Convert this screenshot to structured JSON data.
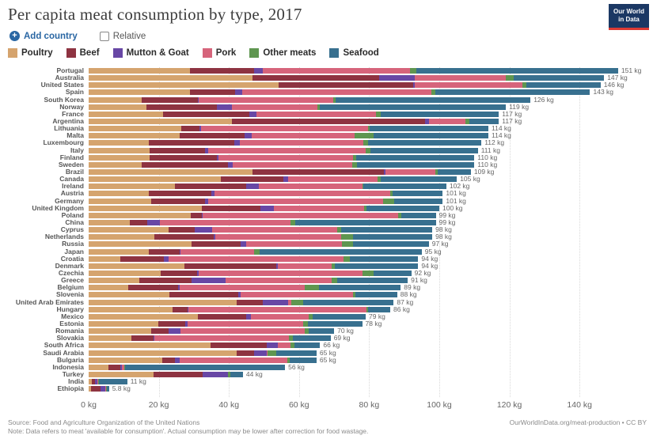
{
  "header": {
    "title": "Per capita meat consumption by type, 2017",
    "logo": {
      "line1": "Our World",
      "line2": "in Data"
    }
  },
  "controls": {
    "add_country_label": "Add country",
    "plus_icon": "+",
    "relative_label": "Relative",
    "relative_checked": false
  },
  "theme": {
    "accent_blue": "#2966a3",
    "logo_navy": "#1b3864",
    "logo_red": "#dc3a34",
    "grid_color": "#d8d8d8"
  },
  "categories": [
    {
      "label": "Poultry",
      "color": "#d5a46e"
    },
    {
      "label": "Beef",
      "color": "#8e3341"
    },
    {
      "label": "Mutton & Goat",
      "color": "#6847a5"
    },
    {
      "label": "Pork",
      "color": "#d6647b"
    },
    {
      "label": "Other meats",
      "color": "#5f9650"
    },
    {
      "label": "Seafood",
      "color": "#38708f"
    }
  ],
  "chart_data": {
    "type": "bar",
    "stacked": true,
    "orientation": "horizontal",
    "unit": "kg",
    "title": "Per capita meat consumption by type, 2017",
    "xlabel": "",
    "ylabel": "",
    "xlim": [
      0,
      151
    ],
    "grid": "dotted-vertical",
    "categories": [
      "Poultry",
      "Beef",
      "Mutton & Goat",
      "Pork",
      "Other meats",
      "Seafood"
    ],
    "x_ticks": [
      {
        "kg": 0,
        "label": "0 kg"
      },
      {
        "kg": 20,
        "label": "20 kg"
      },
      {
        "kg": 40,
        "label": "40 kg"
      },
      {
        "kg": 60,
        "label": "60 kg"
      },
      {
        "kg": 80,
        "label": "80 kg"
      },
      {
        "kg": 100,
        "label": "100 kg"
      },
      {
        "kg": 120,
        "label": "120 kg"
      },
      {
        "kg": 140,
        "label": "140 kg"
      }
    ],
    "rows": [
      {
        "country": "Portugal",
        "total_label": "151 kg",
        "values": [
          28.9,
          18.3,
          2.5,
          42.0,
          1.8,
          57.5
        ]
      },
      {
        "country": "Australia",
        "total_label": "147 kg",
        "values": [
          46.7,
          36.2,
          10.1,
          25.9,
          2.4,
          25.7
        ]
      },
      {
        "country": "United States",
        "total_label": "146 kg",
        "values": [
          54.2,
          38.3,
          0.5,
          30.8,
          1.0,
          21.2
        ]
      },
      {
        "country": "Spain",
        "total_label": "143 kg",
        "values": [
          29.0,
          12.8,
          1.9,
          54.0,
          1.2,
          44.1
        ]
      },
      {
        "country": "South Korea",
        "total_label": "126 kg",
        "values": [
          15.1,
          16.0,
          0.3,
          38.4,
          0.7,
          55.5
        ]
      },
      {
        "country": "Norway",
        "total_label": "119 kg",
        "values": [
          16.5,
          20.0,
          4.3,
          24.5,
          0.7,
          53.0
        ]
      },
      {
        "country": "France",
        "total_label": "117 kg",
        "values": [
          21.3,
          24.5,
          2.0,
          34.1,
          1.3,
          33.8
        ]
      },
      {
        "country": "Argentina",
        "total_label": "117 kg",
        "values": [
          40.9,
          55.0,
          1.2,
          10.4,
          1.1,
          8.4
        ]
      },
      {
        "country": "Lithuania",
        "total_label": "114 kg",
        "values": [
          26.4,
          5.2,
          0.4,
          47.7,
          0.5,
          33.8
        ]
      },
      {
        "country": "Malta",
        "total_label": "114 kg",
        "values": [
          26.0,
          18.5,
          2.0,
          29.3,
          5.4,
          32.8
        ]
      },
      {
        "country": "Luxembourg",
        "total_label": "112 kg",
        "values": [
          17.2,
          24.3,
          1.6,
          35.2,
          1.4,
          32.3
        ]
      },
      {
        "country": "Italy",
        "total_label": "111 kg",
        "values": [
          17.4,
          15.8,
          0.9,
          44.9,
          1.4,
          30.6
        ]
      },
      {
        "country": "Finland",
        "total_label": "110 kg",
        "values": [
          17.3,
          19.3,
          0.5,
          38.4,
          0.9,
          33.6
        ]
      },
      {
        "country": "Sweden",
        "total_label": "110 kg",
        "values": [
          15.1,
          24.6,
          1.4,
          34.1,
          1.3,
          33.5
        ]
      },
      {
        "country": "Brazil",
        "total_label": "109 kg",
        "values": [
          46.7,
          37.5,
          0.4,
          14.3,
          0.6,
          9.5
        ]
      },
      {
        "country": "Canada",
        "total_label": "105 kg",
        "values": [
          37.7,
          17.8,
          1.4,
          25.5,
          0.9,
          21.7
        ]
      },
      {
        "country": "Ireland",
        "total_label": "102 kg",
        "values": [
          24.6,
          20.3,
          3.6,
          29.6,
          0.3,
          23.6
        ]
      },
      {
        "country": "Austria",
        "total_label": "101 kg",
        "values": [
          17.2,
          17.8,
          0.9,
          50.1,
          0.7,
          14.3
        ]
      },
      {
        "country": "Germany",
        "total_label": "101 kg",
        "values": [
          17.8,
          15.4,
          0.9,
          49.9,
          3.1,
          13.9
        ]
      },
      {
        "country": "United Kingdom",
        "total_label": "100 kg",
        "values": [
          32.3,
          16.7,
          3.8,
          25.8,
          0.6,
          20.8
        ]
      },
      {
        "country": "Poland",
        "total_label": "99 kg",
        "values": [
          29.1,
          3.2,
          0.2,
          55.8,
          0.9,
          9.8
        ]
      },
      {
        "country": "China",
        "total_label": "99 kg",
        "values": [
          11.7,
          5.0,
          3.6,
          37.3,
          1.3,
          40.1
        ]
      },
      {
        "country": "Cyprus",
        "total_label": "98 kg",
        "values": [
          22.8,
          7.4,
          5.0,
          35.7,
          1.1,
          26.0
        ]
      },
      {
        "country": "Netherlands",
        "total_label": "98 kg",
        "values": [
          18.7,
          17.0,
          0.4,
          35.9,
          3.4,
          22.6
        ]
      },
      {
        "country": "Russia",
        "total_label": "97 kg",
        "values": [
          29.3,
          14.0,
          1.6,
          27.3,
          3.2,
          21.6
        ]
      },
      {
        "country": "Japan",
        "total_label": "95 kg",
        "values": [
          17.2,
          8.8,
          0.2,
          21.0,
          1.6,
          46.2
        ]
      },
      {
        "country": "Croatia",
        "total_label": "94 kg",
        "values": [
          9.0,
          12.4,
          1.3,
          49.9,
          1.8,
          19.6
        ]
      },
      {
        "country": "Denmark",
        "total_label": "94 kg",
        "values": [
          27.4,
          26.0,
          0.6,
          15.3,
          1.0,
          23.7
        ]
      },
      {
        "country": "Czechia",
        "total_label": "92 kg",
        "values": [
          20.5,
          10.4,
          0.5,
          46.7,
          3.2,
          10.7
        ]
      },
      {
        "country": "Greece",
        "total_label": "91 kg",
        "values": [
          14.4,
          14.9,
          9.7,
          30.3,
          1.6,
          20.1
        ]
      },
      {
        "country": "Belgium",
        "total_label": "89 kg",
        "values": [
          11.3,
          14.2,
          0.4,
          35.7,
          4.1,
          23.3
        ]
      },
      {
        "country": "Slovenia",
        "total_label": "88 kg",
        "values": [
          23.0,
          19.7,
          0.6,
          32.1,
          0.7,
          11.9
        ]
      },
      {
        "country": "United Arab Emirates",
        "total_label": "87 kg",
        "values": [
          42.2,
          7.5,
          7.2,
          0.8,
          3.5,
          25.8
        ]
      },
      {
        "country": "Hungary",
        "total_label": "86 kg",
        "values": [
          24.0,
          4.2,
          0.3,
          50.8,
          0.4,
          6.3
        ]
      },
      {
        "country": "Mexico",
        "total_label": "79 kg",
        "values": [
          31.2,
          13.8,
          1.3,
          16.5,
          1.2,
          15.0
        ]
      },
      {
        "country": "Estonia",
        "total_label": "78 kg",
        "values": [
          19.9,
          7.6,
          0.7,
          33.0,
          1.3,
          15.5
        ]
      },
      {
        "country": "Romania",
        "total_label": "70 kg",
        "values": [
          17.8,
          5.0,
          3.4,
          35.4,
          1.2,
          7.2
        ]
      },
      {
        "country": "Slovakia",
        "total_label": "69 kg",
        "values": [
          12.2,
          6.3,
          0.3,
          38.2,
          1.3,
          10.7
        ]
      },
      {
        "country": "South Africa",
        "total_label": "66 kg",
        "values": [
          34.8,
          16.0,
          3.1,
          3.7,
          1.1,
          7.3
        ]
      },
      {
        "country": "Saudi Arabia",
        "total_label": "65 kg",
        "values": [
          42.2,
          5.0,
          3.6,
          0.2,
          2.5,
          11.5
        ]
      },
      {
        "country": "Bulgaria",
        "total_label": "65 kg",
        "values": [
          21.0,
          3.6,
          1.4,
          30.7,
          0.6,
          7.7
        ]
      },
      {
        "country": "Indonesia",
        "total_label": "56 kg",
        "values": [
          5.7,
          3.3,
          0.4,
          0.8,
          0.3,
          45.5
        ]
      },
      {
        "country": "Turkey",
        "total_label": "44 kg",
        "values": [
          18.5,
          13.9,
          7.3,
          0.0,
          0.8,
          3.5
        ]
      },
      {
        "country": "India",
        "total_label": "11 kg",
        "values": [
          0.8,
          1.0,
          0.8,
          0.2,
          0.2,
          8.0
        ]
      },
      {
        "country": "Ethiopia",
        "total_label": "5.8 kg",
        "values": [
          0.6,
          2.8,
          1.4,
          0.1,
          0.4,
          0.5
        ]
      }
    ]
  },
  "footer": {
    "source": "Source: Food and Agriculture Organization of the United Nations",
    "note": "Note: Data refers to meat 'available for consumption'. Actual consumption may be lower after correction for food wastage.",
    "credit": "OurWorldInData.org/meat-production • CC BY"
  }
}
